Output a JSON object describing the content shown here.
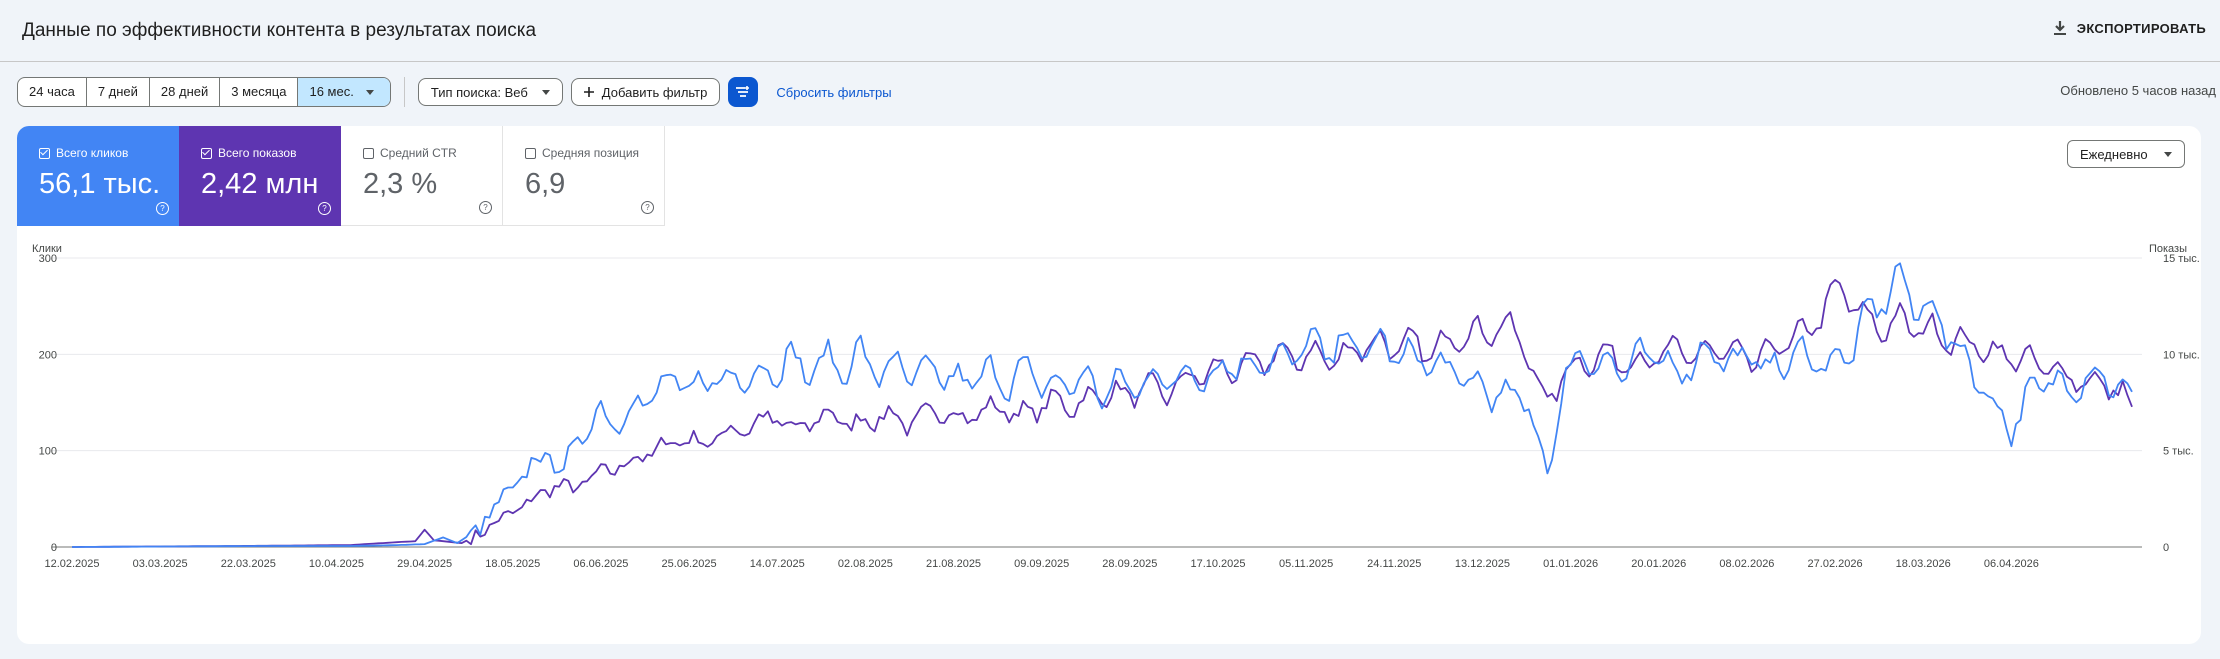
{
  "header": {
    "title": "Данные по эффективности контента в результатах поиска",
    "export_label": "ЭКСПОРТИРОВАТЬ"
  },
  "toolbar": {
    "ranges": [
      "24 часа",
      "7 дней",
      "28 дней",
      "3 месяца",
      "16 мес."
    ],
    "active_range": "16 мес.",
    "search_type": "Тип поиска: Веб",
    "add_filter": "Добавить фильтр",
    "reset_filters": "Сбросить фильтры",
    "updated": "Обновлено 5 часов назад"
  },
  "metrics": [
    {
      "label": "Всего кликов",
      "value": "56,1 тыс.",
      "checked": true,
      "color": "#4285f4"
    },
    {
      "label": "Всего показов",
      "value": "2,42 млн",
      "checked": true,
      "color": "#5e35b1"
    },
    {
      "label": "Средний CTR",
      "value": "2,3 %",
      "checked": false
    },
    {
      "label": "Средняя позиция",
      "value": "6,9",
      "checked": false
    }
  ],
  "granularity": "Ежедневно",
  "chart_data": {
    "type": "line",
    "left_axis_label": "Клики",
    "right_axis_label": "Показы",
    "left_ticks": [
      "0",
      "100",
      "200",
      "300"
    ],
    "left_ylim": [
      0,
      300
    ],
    "right_ticks": [
      "0",
      "5 тыс.",
      "10 тыс.",
      "15 тыс."
    ],
    "right_ylim": [
      0,
      15000
    ],
    "x_ticks": [
      "12.02.2025",
      "03.03.2025",
      "22.03.2025",
      "10.04.2025",
      "29.04.2025",
      "18.05.2025",
      "06.06.2025",
      "25.06.2025",
      "14.07.2025",
      "02.08.2025",
      "21.08.2025",
      "09.09.2025",
      "28.09.2025",
      "17.10.2025",
      "05.11.2025",
      "24.11.2025",
      "13.12.2025",
      "01.01.2026",
      "20.01.2026",
      "08.02.2026",
      "27.02.2026",
      "18.03.2026",
      "06.04.2026"
    ],
    "grid": true,
    "series": [
      {
        "name": "Всего кликов",
        "axis": "left",
        "color": "#4285f4",
        "points": [
          [
            0,
            0
          ],
          [
            40,
            1
          ],
          [
            60,
            1
          ],
          [
            70,
            2
          ],
          [
            76,
            3
          ],
          [
            80,
            10
          ],
          [
            83,
            4
          ],
          [
            88,
            20
          ],
          [
            92,
            45
          ],
          [
            96,
            65
          ],
          [
            100,
            90
          ],
          [
            103,
            95
          ],
          [
            106,
            80
          ],
          [
            110,
            120
          ],
          [
            114,
            140
          ],
          [
            118,
            130
          ],
          [
            122,
            150
          ],
          [
            126,
            160
          ],
          [
            130,
            175
          ],
          [
            134,
            160
          ],
          [
            138,
            180
          ],
          [
            142,
            170
          ],
          [
            146,
            185
          ],
          [
            150,
            175
          ],
          [
            154,
            200
          ],
          [
            158,
            180
          ],
          [
            162,
            195
          ],
          [
            166,
            185
          ],
          [
            170,
            200
          ],
          [
            174,
            180
          ],
          [
            178,
            190
          ],
          [
            182,
            175
          ],
          [
            186,
            185
          ],
          [
            190,
            170
          ],
          [
            194,
            175
          ],
          [
            198,
            180
          ],
          [
            202,
            170
          ],
          [
            206,
            185
          ],
          [
            210,
            165
          ],
          [
            214,
            170
          ],
          [
            218,
            175
          ],
          [
            222,
            160
          ],
          [
            226,
            170
          ],
          [
            230,
            165
          ],
          [
            234,
            180
          ],
          [
            238,
            170
          ],
          [
            242,
            185
          ],
          [
            246,
            175
          ],
          [
            250,
            195
          ],
          [
            254,
            185
          ],
          [
            258,
            200
          ],
          [
            262,
            190
          ],
          [
            266,
            215
          ],
          [
            270,
            200
          ],
          [
            274,
            215
          ],
          [
            278,
            205
          ],
          [
            282,
            210
          ],
          [
            286,
            200
          ],
          [
            290,
            195
          ],
          [
            294,
            190
          ],
          [
            298,
            180
          ],
          [
            302,
            170
          ],
          [
            306,
            160
          ],
          [
            310,
            155
          ],
          [
            314,
            150
          ],
          [
            318,
            75
          ],
          [
            322,
            180
          ],
          [
            326,
            200
          ],
          [
            330,
            190
          ],
          [
            334,
            185
          ],
          [
            338,
            195
          ],
          [
            342,
            200
          ],
          [
            346,
            180
          ],
          [
            350,
            195
          ],
          [
            354,
            205
          ],
          [
            358,
            190
          ],
          [
            362,
            200
          ],
          [
            366,
            185
          ],
          [
            370,
            195
          ],
          [
            374,
            200
          ],
          [
            378,
            190
          ],
          [
            382,
            195
          ],
          [
            386,
            230
          ],
          [
            390,
            260
          ],
          [
            394,
            275
          ],
          [
            398,
            250
          ],
          [
            402,
            240
          ],
          [
            406,
            210
          ],
          [
            410,
            180
          ],
          [
            414,
            150
          ],
          [
            418,
            120
          ],
          [
            422,
            160
          ],
          [
            426,
            175
          ],
          [
            430,
            165
          ],
          [
            434,
            175
          ],
          [
            438,
            180
          ],
          [
            442,
            160
          ],
          [
            444,
            150
          ]
        ]
      },
      {
        "name": "Всего показов",
        "axis": "right",
        "color": "#5e35b1",
        "points": [
          [
            0,
            0
          ],
          [
            40,
            60
          ],
          [
            60,
            100
          ],
          [
            70,
            250
          ],
          [
            74,
            300
          ],
          [
            76,
            900
          ],
          [
            78,
            350
          ],
          [
            84,
            200
          ],
          [
            88,
            700
          ],
          [
            92,
            1400
          ],
          [
            96,
            1900
          ],
          [
            100,
            2600
          ],
          [
            104,
            3200
          ],
          [
            108,
            3000
          ],
          [
            112,
            3600
          ],
          [
            116,
            4000
          ],
          [
            120,
            4400
          ],
          [
            124,
            4800
          ],
          [
            128,
            5300
          ],
          [
            132,
            5700
          ],
          [
            136,
            5300
          ],
          [
            140,
            5900
          ],
          [
            144,
            6100
          ],
          [
            148,
            6500
          ],
          [
            152,
            6700
          ],
          [
            156,
            6000
          ],
          [
            160,
            6600
          ],
          [
            164,
            6900
          ],
          [
            168,
            6300
          ],
          [
            172,
            6600
          ],
          [
            176,
            6900
          ],
          [
            180,
            6400
          ],
          [
            184,
            6800
          ],
          [
            188,
            7100
          ],
          [
            192,
            6700
          ],
          [
            196,
            7000
          ],
          [
            200,
            7300
          ],
          [
            204,
            6800
          ],
          [
            208,
            7200
          ],
          [
            212,
            7600
          ],
          [
            216,
            7300
          ],
          [
            220,
            7800
          ],
          [
            224,
            8000
          ],
          [
            228,
            7900
          ],
          [
            232,
            8300
          ],
          [
            236,
            8000
          ],
          [
            240,
            8700
          ],
          [
            244,
            9000
          ],
          [
            248,
            9300
          ],
          [
            252,
            9200
          ],
          [
            256,
            9600
          ],
          [
            260,
            10000
          ],
          [
            264,
            9800
          ],
          [
            268,
            10000
          ],
          [
            272,
            9700
          ],
          [
            276,
            10200
          ],
          [
            280,
            10700
          ],
          [
            284,
            10300
          ],
          [
            288,
            10600
          ],
          [
            292,
            10100
          ],
          [
            296,
            10600
          ],
          [
            300,
            11200
          ],
          [
            304,
            11000
          ],
          [
            308,
            11600
          ],
          [
            312,
            10800
          ],
          [
            314,
            9800
          ],
          [
            318,
            7400
          ],
          [
            322,
            9200
          ],
          [
            326,
            9600
          ],
          [
            330,
            10000
          ],
          [
            334,
            9700
          ],
          [
            338,
            9600
          ],
          [
            342,
            9900
          ],
          [
            346,
            10200
          ],
          [
            350,
            9900
          ],
          [
            354,
            10300
          ],
          [
            358,
            10000
          ],
          [
            362,
            9700
          ],
          [
            366,
            10100
          ],
          [
            370,
            10700
          ],
          [
            374,
            11100
          ],
          [
            378,
            12600
          ],
          [
            382,
            13400
          ],
          [
            386,
            11900
          ],
          [
            390,
            11400
          ],
          [
            394,
            11700
          ],
          [
            398,
            11400
          ],
          [
            402,
            11100
          ],
          [
            406,
            10700
          ],
          [
            410,
            10500
          ],
          [
            414,
            10100
          ],
          [
            418,
            9900
          ],
          [
            422,
            9600
          ],
          [
            426,
            9300
          ],
          [
            430,
            8900
          ],
          [
            434,
            8600
          ],
          [
            438,
            8400
          ],
          [
            442,
            8100
          ],
          [
            444,
            6900
          ]
        ]
      }
    ]
  }
}
